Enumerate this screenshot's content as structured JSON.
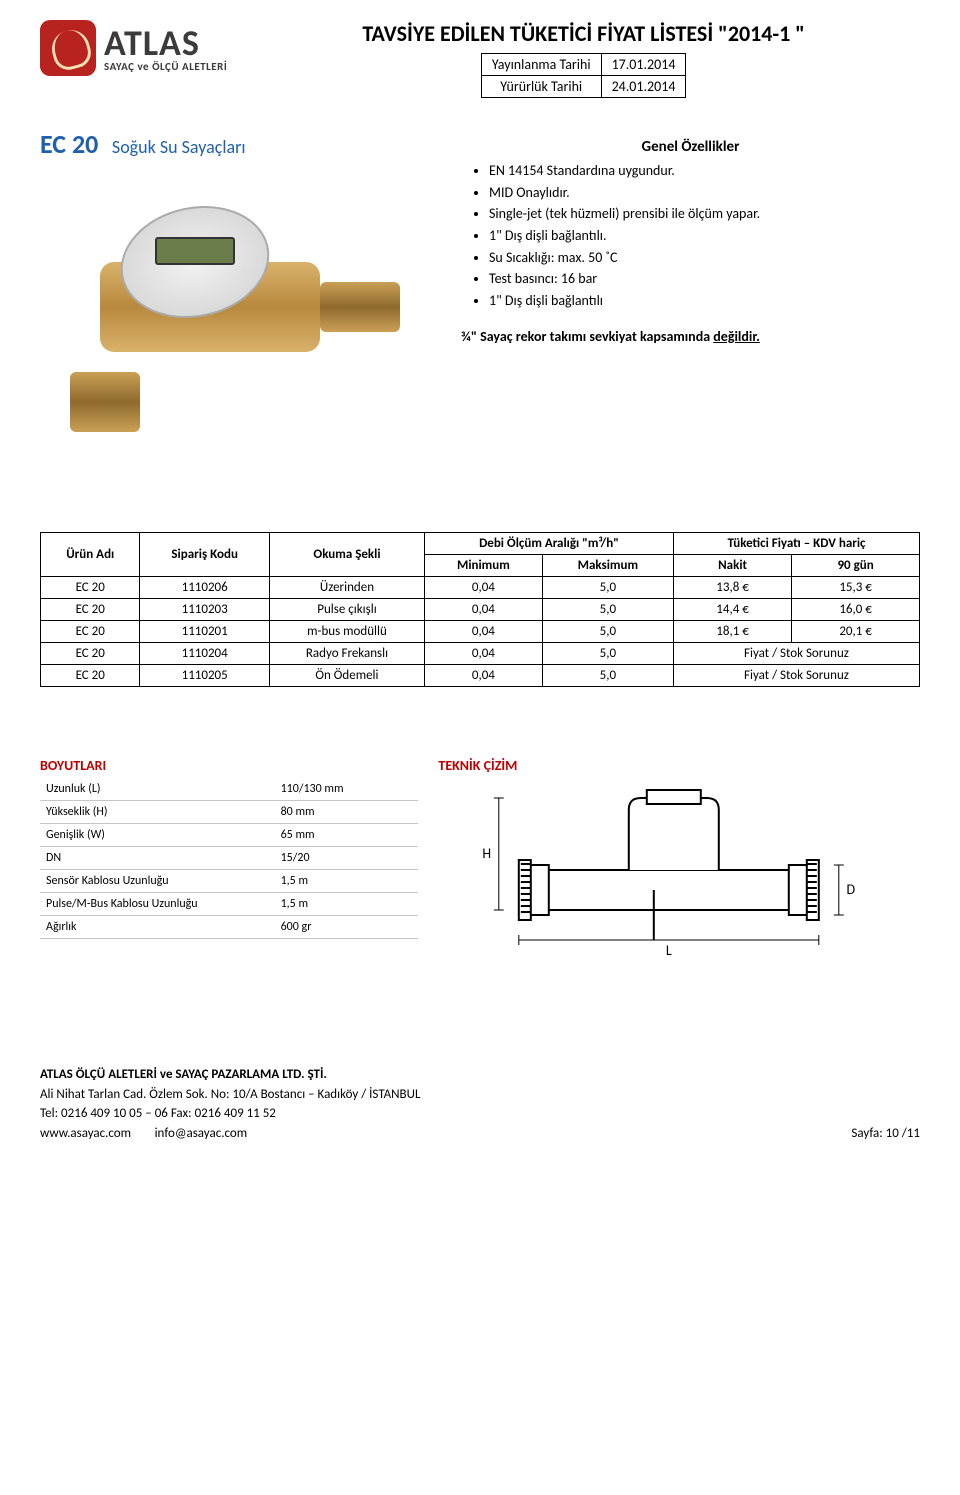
{
  "logo": {
    "brand": "ATLAS",
    "subtitle": "SAYAÇ ve ÖLÇÜ ALETLERİ"
  },
  "doc_title": "TAVSİYE EDİLEN TÜKETİCİ FİYAT LİSTESİ \"2014-1 \"",
  "dates": {
    "pub_label": "Yayınlanma Tarihi",
    "pub_value": "17.01.2014",
    "eff_label": "Yürürlük Tarihi",
    "eff_value": "24.01.2014"
  },
  "model": {
    "code": "EC 20",
    "name": "Soğuk Su Sayaçları"
  },
  "features_head": "Genel Özellikler",
  "features": [
    "EN 14154 Standardına uygundur.",
    "MID Onaylıdır.",
    "Single-jet (tek hüzmeli) prensibi ile ölçüm yapar.",
    "1\" Dış dişli bağlantılı.",
    "Su Sıcaklığı: max. 50 ˚C",
    "Test basıncı: 16 bar",
    "1\" Dış dişli bağlantılı"
  ],
  "note_bold": "¾\" Sayaç rekor takımı sevkiyat kapsamında ",
  "note_u": "değildir.",
  "price_table": {
    "h_product": "Ürün Adı",
    "h_code": "Sipariş Kodu",
    "h_reading": "Okuma Şekli",
    "h_flow_group": "Debi Ölçüm Aralığı \"m³/h\"",
    "h_price_group": "Tüketici Fiyatı – KDV hariç",
    "h_min": "Minimum",
    "h_max": "Maksimum",
    "h_cash": "Nakit",
    "h_90": "90 gün",
    "rows": [
      {
        "name": "EC 20",
        "code": "1110206",
        "reading": "Üzerinden",
        "min": "0,04",
        "max": "5,0",
        "cash": "13,8 €",
        "d90": "15,3 €"
      },
      {
        "name": "EC 20",
        "code": "1110203",
        "reading": "Pulse çıkışlı",
        "min": "0,04",
        "max": "5,0",
        "cash": "14,4 €",
        "d90": "16,0 €"
      },
      {
        "name": "EC 20",
        "code": "1110201",
        "reading": "m-bus modüllü",
        "min": "0,04",
        "max": "5,0",
        "cash": "18,1 €",
        "d90": "20,1 €"
      },
      {
        "name": "EC 20",
        "code": "1110204",
        "reading": "Radyo Frekanslı",
        "min": "0,04",
        "max": "5,0",
        "cash": "Fiyat / Stok Sorunuz",
        "d90": ""
      },
      {
        "name": "EC 20",
        "code": "1110205",
        "reading": "Ön Ödemeli",
        "min": "0,04",
        "max": "5,0",
        "cash": "Fiyat / Stok Sorunuz",
        "d90": ""
      }
    ]
  },
  "dims": {
    "head": "BOYUTLARI",
    "rows": [
      {
        "k": "Uzunluk (L)",
        "v": "110/130 mm"
      },
      {
        "k": "Yükseklik (H)",
        "v": "80 mm"
      },
      {
        "k": "Genişlik (W)",
        "v": "65 mm"
      },
      {
        "k": "DN",
        "v": "15/20"
      },
      {
        "k": "Sensör Kablosu Uzunluğu",
        "v": "1,5 m"
      },
      {
        "k": "Pulse/M-Bus Kablosu Uzunluğu",
        "v": "1,5 m"
      },
      {
        "k": "Ağırlık",
        "v": "600 gr"
      }
    ]
  },
  "tech_head": "TEKNİK ÇİZİM",
  "tech_labels": {
    "L": "L",
    "H": "H",
    "D": "D"
  },
  "footer": {
    "company": "ATLAS ÖLÇÜ ALETLERİ ve SAYAÇ PAZARLAMA LTD. ŞTİ.",
    "address": "Ali Nihat Tarlan Cad. Özlem Sok. No: 10/A  Bostancı – Kadıköy / İSTANBUL",
    "phones": "Tel: 0216 409 10 05 – 06      Fax: 0216 409 11 52",
    "web": "www.asayac.com",
    "email": "info@asayac.com",
    "page_label": "Sayfa:  10 /11"
  }
}
